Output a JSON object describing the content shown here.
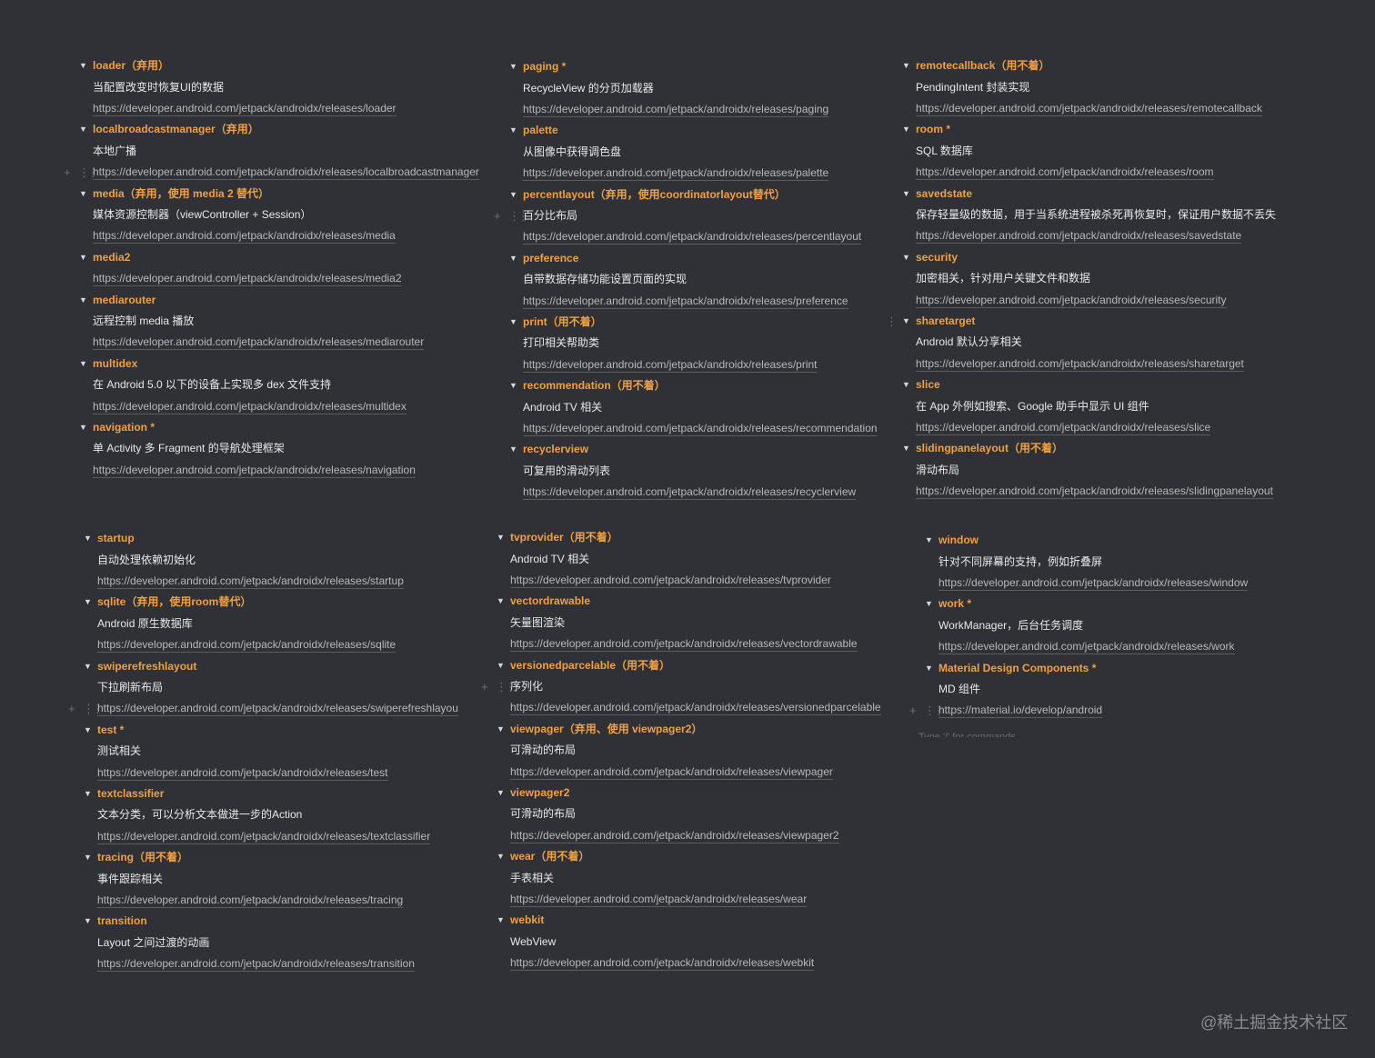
{
  "columns": [
    {
      "items": [
        {
          "title": "loader（弃用）",
          "desc": "当配置改变时恢复UI的数据",
          "url": "https://developer.android.com/jetpack/androidx/releases/loader"
        },
        {
          "title": "localbroadcastmanager（弃用）",
          "desc": "本地广播",
          "url": "https://developer.android.com/jetpack/androidx/releases/localbroadcastmanager",
          "handle": "url"
        },
        {
          "title": "media（弃用，使用 media 2 替代）",
          "desc": "媒体资源控制器（viewController + Session）",
          "url": "https://developer.android.com/jetpack/androidx/releases/media"
        },
        {
          "title": "media2",
          "url": "https://developer.android.com/jetpack/androidx/releases/media2"
        },
        {
          "title": "mediarouter",
          "desc": "远程控制 media 播放",
          "url": "https://developer.android.com/jetpack/androidx/releases/mediarouter"
        },
        {
          "title": "multidex",
          "desc": "在 Android 5.0 以下的设备上实现多 dex 文件支持",
          "url": "https://developer.android.com/jetpack/androidx/releases/multidex"
        },
        {
          "title": "navigation *",
          "desc": "单 Activity 多 Fragment 的导航处理框架",
          "url": "https://developer.android.com/jetpack/androidx/releases/navigation"
        }
      ]
    },
    {
      "items": [
        {
          "title": "paging *",
          "desc": "RecycleView 的分页加载器",
          "url": "https://developer.android.com/jetpack/androidx/releases/paging"
        },
        {
          "title": "palette",
          "desc": "从图像中获得调色盘",
          "url": "https://developer.android.com/jetpack/androidx/releases/palette"
        },
        {
          "title": "percentlayout（弃用，使用coordinatorlayout替代）",
          "desc": "百分比布局",
          "url": "https://developer.android.com/jetpack/androidx/releases/percentlayout",
          "handle": "desc"
        },
        {
          "title": "preference",
          "desc": "自带数据存储功能设置页面的实现",
          "url": "https://developer.android.com/jetpack/androidx/releases/preference"
        },
        {
          "title": "print（用不着）",
          "desc": "打印相关帮助类",
          "url": "https://developer.android.com/jetpack/androidx/releases/print"
        },
        {
          "title": "recommendation（用不着）",
          "desc": "Android TV 相关",
          "url": "https://developer.android.com/jetpack/androidx/releases/recommendation"
        },
        {
          "title": "recyclerview",
          "desc": "可复用的滑动列表",
          "url": "https://developer.android.com/jetpack/androidx/releases/recyclerview"
        }
      ]
    },
    {
      "items": [
        {
          "title": "remotecallback（用不着）",
          "desc": "PendingIntent 封装实现",
          "url": "https://developer.android.com/jetpack/androidx/releases/remotecallback"
        },
        {
          "title": "room *",
          "desc": "SQL 数据库",
          "url": "https://developer.android.com/jetpack/androidx/releases/room"
        },
        {
          "title": "savedstate",
          "desc": "保存轻量级的数据，用于当系统进程被杀死再恢复时，保证用户数据不丢失",
          "url": "https://developer.android.com/jetpack/androidx/releases/savedstate"
        },
        {
          "title": "security",
          "desc": "加密相关，针对用户关键文件和数据",
          "url": "https://developer.android.com/jetpack/androidx/releases/security"
        },
        {
          "title": "sharetarget",
          "desc": "Android 默认分享相关",
          "url": "https://developer.android.com/jetpack/androidx/releases/sharetarget",
          "handle": "title-grip"
        },
        {
          "title": "slice",
          "desc": "在 App 外例如搜索、Google 助手中显示 UI 组件",
          "url": "https://developer.android.com/jetpack/androidx/releases/slice"
        },
        {
          "title": "slidingpanelayout（用不着）",
          "desc": "滑动布局",
          "url": "https://developer.android.com/jetpack/androidx/releases/slidingpanelayout"
        }
      ]
    },
    {
      "items": [
        {
          "title": "startup",
          "desc": "自动处理依赖初始化",
          "url": "https://developer.android.com/jetpack/androidx/releases/startup"
        },
        {
          "title": "sqlite（弃用，使用room替代）",
          "desc": "Android 原生数据库",
          "url": "https://developer.android.com/jetpack/androidx/releases/sqlite"
        },
        {
          "title": "swiperefreshlayout",
          "desc": "下拉刷新布局",
          "url": "https://developer.android.com/jetpack/androidx/releases/swiperefreshlayou",
          "handle": "url"
        },
        {
          "title": "test *",
          "desc": "测试相关",
          "url": "https://developer.android.com/jetpack/androidx/releases/test"
        },
        {
          "title": "textclassifier",
          "desc": "文本分类，可以分析文本做进一步的Action",
          "url": "https://developer.android.com/jetpack/androidx/releases/textclassifier"
        },
        {
          "title": "tracing（用不着）",
          "desc": "事件跟踪相关",
          "url": "https://developer.android.com/jetpack/androidx/releases/tracing"
        },
        {
          "title": "transition",
          "desc": "Layout 之间过渡的动画",
          "url": "https://developer.android.com/jetpack/androidx/releases/transition"
        }
      ]
    },
    {
      "items": [
        {
          "title": "tvprovider（用不着）",
          "desc": "Android TV 相关",
          "url": "https://developer.android.com/jetpack/androidx/releases/tvprovider"
        },
        {
          "title": "vectordrawable",
          "desc": "矢量图渲染",
          "url": "https://developer.android.com/jetpack/androidx/releases/vectordrawable"
        },
        {
          "title": "versionedparcelable（用不着）",
          "desc": "序列化",
          "url": "https://developer.android.com/jetpack/androidx/releases/versionedparcelable",
          "handle": "desc"
        },
        {
          "title": "viewpager（弃用、使用 viewpager2）",
          "desc": "可滑动的布局",
          "url": "https://developer.android.com/jetpack/androidx/releases/viewpager"
        },
        {
          "title": "viewpager2",
          "desc": "可滑动的布局",
          "url": "https://developer.android.com/jetpack/androidx/releases/viewpager2"
        },
        {
          "title": "wear（用不着）",
          "desc": "手表相关",
          "url": "https://developer.android.com/jetpack/androidx/releases/wear"
        },
        {
          "title": "webkit",
          "desc": "WebView",
          "url": "https://developer.android.com/jetpack/androidx/releases/webkit"
        }
      ]
    },
    {
      "items": [
        {
          "title": "window",
          "desc": "针对不同屏幕的支持，例如折叠屏",
          "url": "https://developer.android.com/jetpack/androidx/releases/window"
        },
        {
          "title": "work *",
          "desc": "WorkManager，后台任务调度",
          "url": "https://developer.android.com/jetpack/androidx/releases/work"
        },
        {
          "title": "Material Design Components *",
          "desc": "MD 组件",
          "url": "https://material.io/develop/android",
          "handle": "url"
        }
      ],
      "placeholder": "Type '/' for commands"
    }
  ],
  "watermark": "@稀土掘金技术社区",
  "colors": {
    "background": "#2f3136",
    "title": "#f0a040",
    "text": "#e8e8e8",
    "link": "#b8b8b8"
  },
  "icons": {
    "toggle": "triangle-down-icon",
    "add": "plus-icon",
    "drag": "drag-handle-icon"
  }
}
